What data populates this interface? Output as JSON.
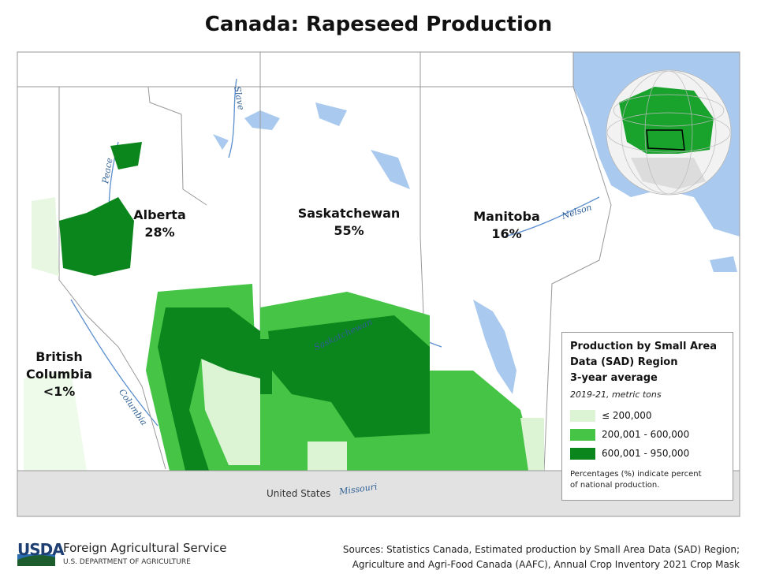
{
  "title": "Canada: Rapeseed Production",
  "regions": [
    {
      "name": "Alberta",
      "share": "28%"
    },
    {
      "name": "Saskatchewan",
      "share": "55%"
    },
    {
      "name": "Manitoba",
      "share": "16%"
    },
    {
      "name": "British Columbia",
      "share": "<1%"
    }
  ],
  "rivers": [
    "Slave",
    "Peace",
    "Saskatchewan",
    "Nelson",
    "Columbia",
    "Missouri"
  ],
  "country_label": "United States",
  "legend": {
    "title_lines": [
      "Production by Small Area",
      "Data (SAD) Region",
      "3-year average"
    ],
    "subtitle": "2019-21, metric tons",
    "items": [
      {
        "label": "≤ 200,000",
        "color": "#dcf3d4"
      },
      {
        "label": "200,001 - 600,000",
        "color": "#45c445"
      },
      {
        "label": "600,001 - 950,000",
        "color": "#0b861c"
      }
    ],
    "note_lines": [
      "Percentages (%) indicate percent",
      "of national production."
    ]
  },
  "footer": {
    "logo": "USDA",
    "agency": "Foreign Agricultural Service",
    "department": "U.S. DEPARTMENT OF AGRICULTURE",
    "source_lines": [
      "Sources: Statistics Canada, Estimated production by Small Area Data (SAD) Region;",
      "Agriculture and Agri-Food Canada (AAFC), Annual Crop Inventory 2021 Crop Mask"
    ]
  }
}
